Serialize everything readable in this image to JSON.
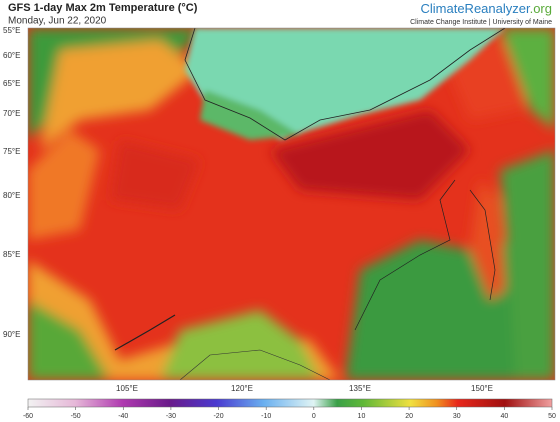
{
  "header": {
    "title": "GFS 1-day Max 2m Temperature (°C)",
    "date": "Monday, Jun 22, 2020",
    "brand_main": "ClimateReanalyzer",
    "brand_suffix": ".org",
    "institute": "Climate Change Institute | University of Maine"
  },
  "map": {
    "lat_labels": [
      "55°E",
      "60°E",
      "65°E",
      "70°E",
      "75°E",
      "80°E",
      "85°E",
      "90°E"
    ],
    "lon_labels": [
      "105°E",
      "120°E",
      "135°E",
      "150°E"
    ]
  },
  "colorbar": {
    "range": [
      -60,
      50
    ],
    "ticks": [
      -60,
      -50,
      -40,
      -30,
      -20,
      -10,
      0,
      10,
      20,
      30,
      40,
      50
    ]
  }
}
